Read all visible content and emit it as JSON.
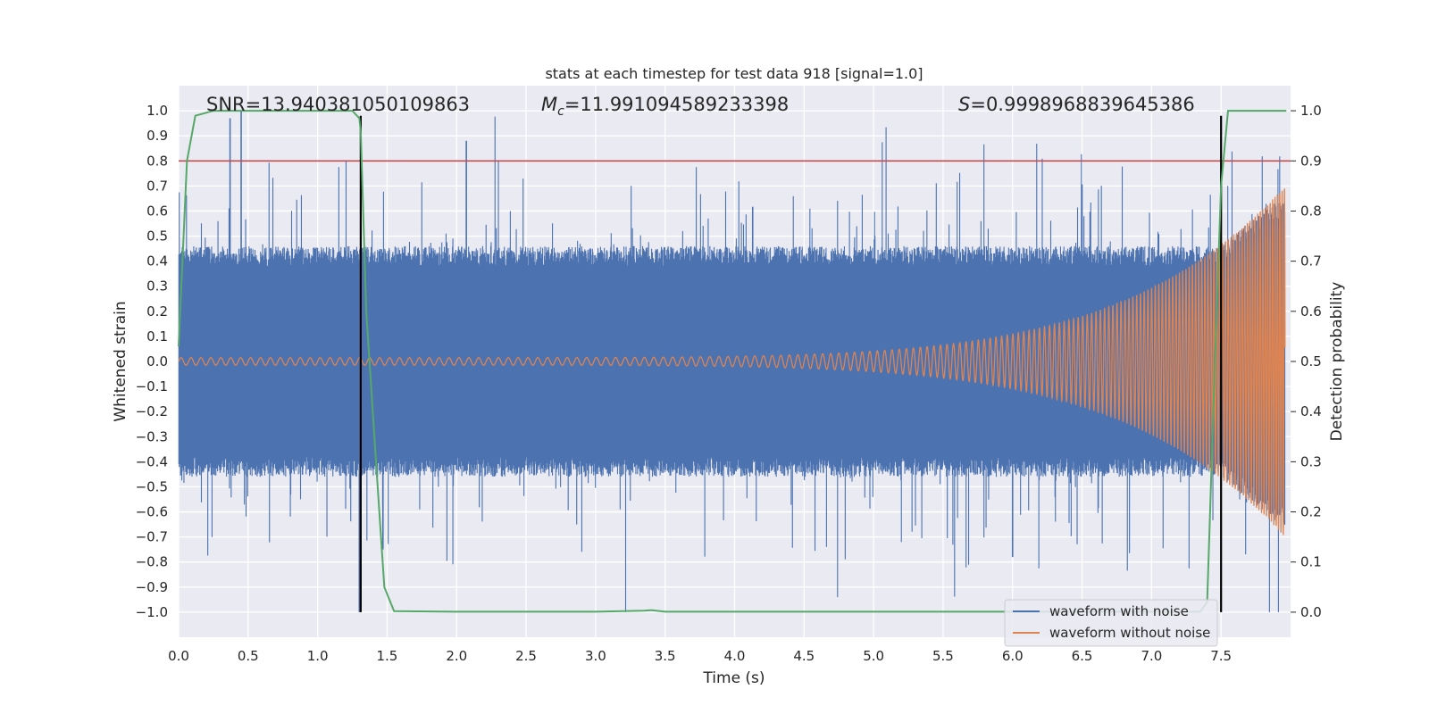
{
  "chart_data": {
    "type": "line",
    "title": "stats at each timestep for test data 918 [signal=1.0]",
    "xlabel": "Time (s)",
    "ylabel_left": "Whitened strain",
    "ylabel_right": "Detection probability",
    "xlim": [
      0.0,
      8.0
    ],
    "ylim_left": [
      -1.1,
      1.1
    ],
    "ylim_right": [
      -0.05,
      1.05
    ],
    "x_ticks": [
      "0.0",
      "0.5",
      "1.0",
      "1.5",
      "2.0",
      "2.5",
      "3.0",
      "3.5",
      "4.0",
      "4.5",
      "5.0",
      "5.5",
      "6.0",
      "6.5",
      "7.0",
      "7.5"
    ],
    "y_ticks_left": [
      "1.0",
      "0.9",
      "0.8",
      "0.7",
      "0.6",
      "0.5",
      "0.4",
      "0.3",
      "0.2",
      "0.1",
      "0.0",
      "−0.1",
      "−0.2",
      "−0.3",
      "−0.4",
      "−0.5",
      "−0.6",
      "−0.7",
      "−0.8",
      "−0.9",
      "−1.0"
    ],
    "y_ticks_right": [
      "1.0",
      "0.9",
      "0.8",
      "0.7",
      "0.6",
      "0.5",
      "0.4",
      "0.3",
      "0.2",
      "0.1",
      "0.0"
    ],
    "grid": true,
    "legend_position": "bottom-right",
    "annotations": {
      "snr": "SNR=13.940381050109863",
      "mc_symbol": "M",
      "mc_sub": "c",
      "mc_value": "=11.991094589233398",
      "s_symbol": "S",
      "s_value": "=0.9998968839645386"
    },
    "series": [
      {
        "name": "waveform with noise",
        "color": "#4c72b0",
        "axis": "left",
        "noise_envelope": {
          "typical_peak": 0.4,
          "max_peak": 1.0
        }
      },
      {
        "name": "waveform without noise",
        "color": "#dd8452",
        "axis": "left",
        "chirp": {
          "amplitude_start": 0.015,
          "amplitude_end": 0.7,
          "cycles_per_second_start": 14,
          "cycles_per_second_end": 60,
          "merger_time": 7.96
        }
      },
      {
        "name": "",
        "color": "#55a868",
        "axis": "right",
        "x": [
          0.0,
          0.06,
          0.12,
          0.25,
          0.5,
          0.75,
          1.0,
          1.25,
          1.3,
          1.31,
          1.35,
          1.42,
          1.48,
          1.55,
          2.0,
          3.0,
          3.35,
          3.4,
          3.5,
          4.0,
          5.0,
          6.0,
          7.0,
          7.3,
          7.35,
          7.4,
          7.45,
          7.5,
          7.55,
          7.97
        ],
        "values": [
          0.53,
          0.9,
          0.99,
          1.0,
          1.0,
          1.0,
          1.0,
          1.0,
          0.985,
          0.96,
          0.6,
          0.3,
          0.05,
          0.002,
          0.001,
          0.001,
          0.003,
          0.004,
          0.001,
          0.001,
          0.001,
          0.001,
          0.001,
          0.001,
          0.001,
          0.02,
          0.45,
          0.85,
          1.0,
          1.0
        ]
      }
    ],
    "hlines": [
      {
        "y_right": 0.9,
        "color": "#c44e52"
      }
    ],
    "vlines": [
      {
        "x": 1.31,
        "color": "#000000",
        "y_right": [
          0.0,
          0.99
        ]
      },
      {
        "x": 7.5,
        "color": "#000000",
        "y_right": [
          0.0,
          0.99
        ]
      }
    ]
  }
}
